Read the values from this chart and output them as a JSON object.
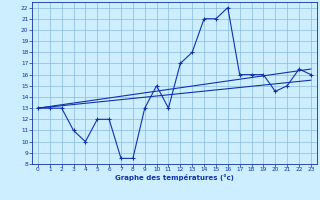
{
  "title": "Graphe des températures (°c)",
  "bg_color": "#cceeff",
  "grid_color": "#88bbdd",
  "line_color": "#1133aa",
  "xlim": [
    -0.5,
    23.5
  ],
  "ylim": [
    8,
    22.5
  ],
  "xticks": [
    0,
    1,
    2,
    3,
    4,
    5,
    6,
    7,
    8,
    9,
    10,
    11,
    12,
    13,
    14,
    15,
    16,
    17,
    18,
    19,
    20,
    21,
    22,
    23
  ],
  "yticks": [
    8,
    9,
    10,
    11,
    12,
    13,
    14,
    15,
    16,
    17,
    18,
    19,
    20,
    21,
    22
  ],
  "temp_line": {
    "x": [
      0,
      1,
      2,
      3,
      4,
      5,
      6,
      7,
      8,
      9,
      10,
      11,
      12,
      13,
      14,
      15,
      16,
      17,
      18,
      19,
      20,
      21,
      22,
      23
    ],
    "y": [
      13,
      13,
      13,
      11,
      10,
      12,
      12,
      8.5,
      8.5,
      13,
      15,
      13,
      17,
      18,
      21,
      21,
      22,
      16,
      16,
      16,
      14.5,
      15,
      16.5,
      16
    ]
  },
  "regression_line1": {
    "x": [
      0,
      23
    ],
    "y": [
      13.0,
      16.5
    ]
  },
  "regression_line2": {
    "x": [
      0,
      23
    ],
    "y": [
      13.0,
      15.5
    ]
  }
}
